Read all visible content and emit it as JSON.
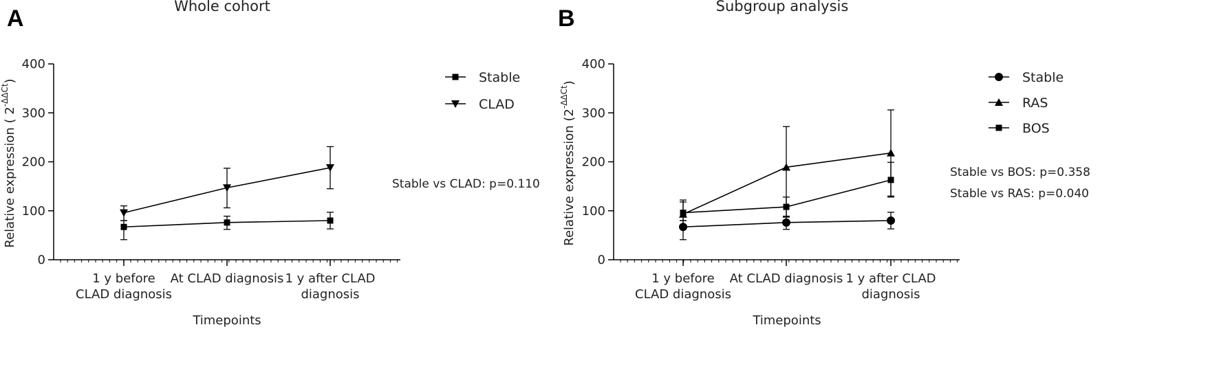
{
  "chart_data": [
    {
      "panel": "A",
      "type": "line",
      "title": "Whole cohort",
      "xlabel": "Timepoints",
      "ylabel": "Relative expression ( 2",
      "ylabel_superscript": "-ΔΔCt",
      "ylabel_close": ")",
      "ylim": [
        0,
        400
      ],
      "yticks": [
        "0",
        "100",
        "200",
        "300",
        "400"
      ],
      "categories": [
        [
          "1 y before",
          "CLAD diagnosis"
        ],
        [
          "At CLAD diagnosis"
        ],
        [
          "1 y after CLAD",
          "diagnosis"
        ]
      ],
      "series": [
        {
          "name": "Stable",
          "marker": "square",
          "values": [
            67,
            76,
            80
          ],
          "err_upper": [
            80,
            89,
            97
          ],
          "err_lower": [
            41,
            62,
            63
          ]
        },
        {
          "name": "CLAD",
          "marker": "triangle-down",
          "values": [
            96,
            147,
            188
          ],
          "err_upper": [
            110,
            187,
            231
          ],
          "err_lower": [
            80,
            106,
            145
          ]
        }
      ],
      "annotations": [
        "Stable vs CLAD: p=0.110"
      ]
    },
    {
      "panel": "B",
      "type": "line",
      "title": "Subgroup analysis",
      "xlabel": "Timepoints",
      "ylabel": "Relative expression (2",
      "ylabel_superscript": "-ΔΔCt",
      "ylabel_close": ")",
      "ylim": [
        0,
        400
      ],
      "yticks": [
        "0",
        "100",
        "200",
        "300",
        "400"
      ],
      "categories": [
        [
          "1 y before",
          "CLAD diagnosis"
        ],
        [
          "At CLAD diagnosis"
        ],
        [
          "1 y after CLAD",
          "diagnosis"
        ]
      ],
      "series": [
        {
          "name": "Stable",
          "marker": "circle",
          "values": [
            67,
            76,
            80
          ],
          "err_upper": [
            80,
            89,
            97
          ],
          "err_lower": [
            41,
            62,
            63
          ]
        },
        {
          "name": "RAS",
          "marker": "triangle-up",
          "values": [
            93,
            189,
            218
          ],
          "err_upper": [
            118,
            272,
            306
          ],
          "err_lower": [
            80,
            88,
            130
          ]
        },
        {
          "name": "BOS",
          "marker": "square",
          "values": [
            96,
            108,
            163
          ],
          "err_upper": [
            122,
            128,
            199
          ],
          "err_lower": [
            70,
            87,
            128
          ]
        }
      ],
      "annotations": [
        "Stable vs BOS: p=0.358",
        "Stable vs RAS: p=0.040"
      ]
    }
  ]
}
